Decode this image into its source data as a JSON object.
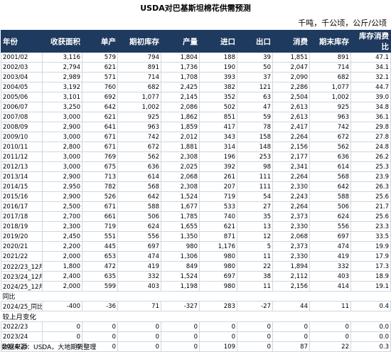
{
  "title": "USDA对巴基斯坦棉花供需预测",
  "unit_note": "千吨，千公顷，公斤/公顷",
  "headers": [
    "年份",
    "收获面积",
    "单产",
    "期初库存",
    "产量",
    "进口",
    "出口",
    "消费",
    "期末库存",
    "库存消费比"
  ],
  "rows": [
    [
      "2001/02",
      "3,116",
      "579",
      "794",
      "1,804",
      "188",
      "39",
      "1,851",
      "891",
      "47.1"
    ],
    [
      "2002/03",
      "2,794",
      "621",
      "891",
      "1,736",
      "190",
      "50",
      "2,047",
      "714",
      "34.1"
    ],
    [
      "2003/04",
      "2,989",
      "571",
      "714",
      "1,708",
      "393",
      "37",
      "2,090",
      "682",
      "32.1"
    ],
    [
      "2004/05",
      "3,192",
      "760",
      "682",
      "2,425",
      "382",
      "121",
      "2,286",
      "1,077",
      "44.7"
    ],
    [
      "2005/06",
      "3,101",
      "692",
      "1,077",
      "2,145",
      "352",
      "63",
      "2,504",
      "1,002",
      "39.0"
    ],
    [
      "2006/07",
      "3,250",
      "642",
      "1,002",
      "2,086",
      "502",
      "47",
      "2,613",
      "925",
      "34.8"
    ],
    [
      "2007/08",
      "3,000",
      "621",
      "925",
      "1,862",
      "851",
      "59",
      "2,613",
      "963",
      "36.1"
    ],
    [
      "2008/09",
      "2,900",
      "641",
      "963",
      "1,859",
      "417",
      "78",
      "2,417",
      "742",
      "29.8"
    ],
    [
      "2009/10",
      "3,000",
      "671",
      "742",
      "2,012",
      "343",
      "158",
      "2,264",
      "672",
      "27.8"
    ],
    [
      "2010/11",
      "2,800",
      "671",
      "672",
      "1,881",
      "314",
      "148",
      "2,156",
      "562",
      "24.8"
    ],
    [
      "2011/12",
      "3,000",
      "769",
      "562",
      "2,308",
      "196",
      "253",
      "2,177",
      "636",
      "26.2"
    ],
    [
      "2012/13",
      "3,000",
      "675",
      "636",
      "2,025",
      "392",
      "98",
      "2,341",
      "614",
      "25.3"
    ],
    [
      "2013/14",
      "2,900",
      "713",
      "614",
      "2,068",
      "261",
      "111",
      "2,264",
      "568",
      "23.9"
    ],
    [
      "2014/15",
      "2,950",
      "782",
      "568",
      "2,308",
      "207",
      "111",
      "2,330",
      "642",
      "26.3"
    ],
    [
      "2015/16",
      "2,900",
      "526",
      "642",
      "1,524",
      "719",
      "54",
      "2,243",
      "588",
      "25.6"
    ],
    [
      "2016/17",
      "2,500",
      "671",
      "588",
      "1,677",
      "533",
      "27",
      "2,264",
      "506",
      "21.7"
    ],
    [
      "2017/18",
      "2,700",
      "661",
      "506",
      "1,785",
      "740",
      "35",
      "2,373",
      "624",
      "25.6"
    ],
    [
      "2018/19",
      "2,300",
      "719",
      "624",
      "1,655",
      "621",
      "13",
      "2,330",
      "556",
      "23.3"
    ],
    [
      "2019/20",
      "2,450",
      "551",
      "556",
      "1,350",
      "871",
      "12",
      "2,068",
      "697",
      "33.5"
    ],
    [
      "2020/21",
      "2,200",
      "445",
      "697",
      "980",
      "1,176",
      "5",
      "2,373",
      "474",
      "19.9"
    ],
    [
      "2021/22",
      "2,000",
      "653",
      "474",
      "1,306",
      "980",
      "11",
      "2,330",
      "419",
      "17.9"
    ],
    [
      "2022/23_12月",
      "1,800",
      "472",
      "419",
      "849",
      "980",
      "22",
      "1,894",
      "332",
      "17.3"
    ],
    [
      "2023/24_12月",
      "2,400",
      "635",
      "332",
      "1,524",
      "697",
      "38",
      "2,112",
      "403",
      "18.9"
    ],
    [
      "2024/25_12月",
      "2,000",
      "599",
      "403",
      "1,198",
      "980",
      "11",
      "2,156",
      "414",
      "19.1"
    ]
  ],
  "yoy_section_label": "同比",
  "yoy_rows": [
    [
      "2024/25_同比",
      "-400",
      "-36",
      "71",
      "-327",
      "283",
      "-27",
      "44",
      "11",
      "0.4"
    ]
  ],
  "mom_section_label": "较上月变化",
  "mom_rows": [
    [
      "2022/23",
      "0",
      "0",
      "0",
      "0",
      "0",
      "0",
      "0",
      "0",
      "0.0"
    ],
    [
      "2023/24",
      "0",
      "0",
      "0",
      "0",
      "0",
      "0",
      "0",
      "0",
      "0.0"
    ],
    [
      "2024/25",
      "0",
      "0",
      "0",
      "0",
      "109",
      "0",
      "87",
      "22",
      "0.3"
    ]
  ],
  "source": "数据来源：USDA，大地期货整理",
  "colors": {
    "header_bg": "#1f3a5f",
    "header_text": "#ffffff",
    "grid": "#cfd8e3"
  }
}
